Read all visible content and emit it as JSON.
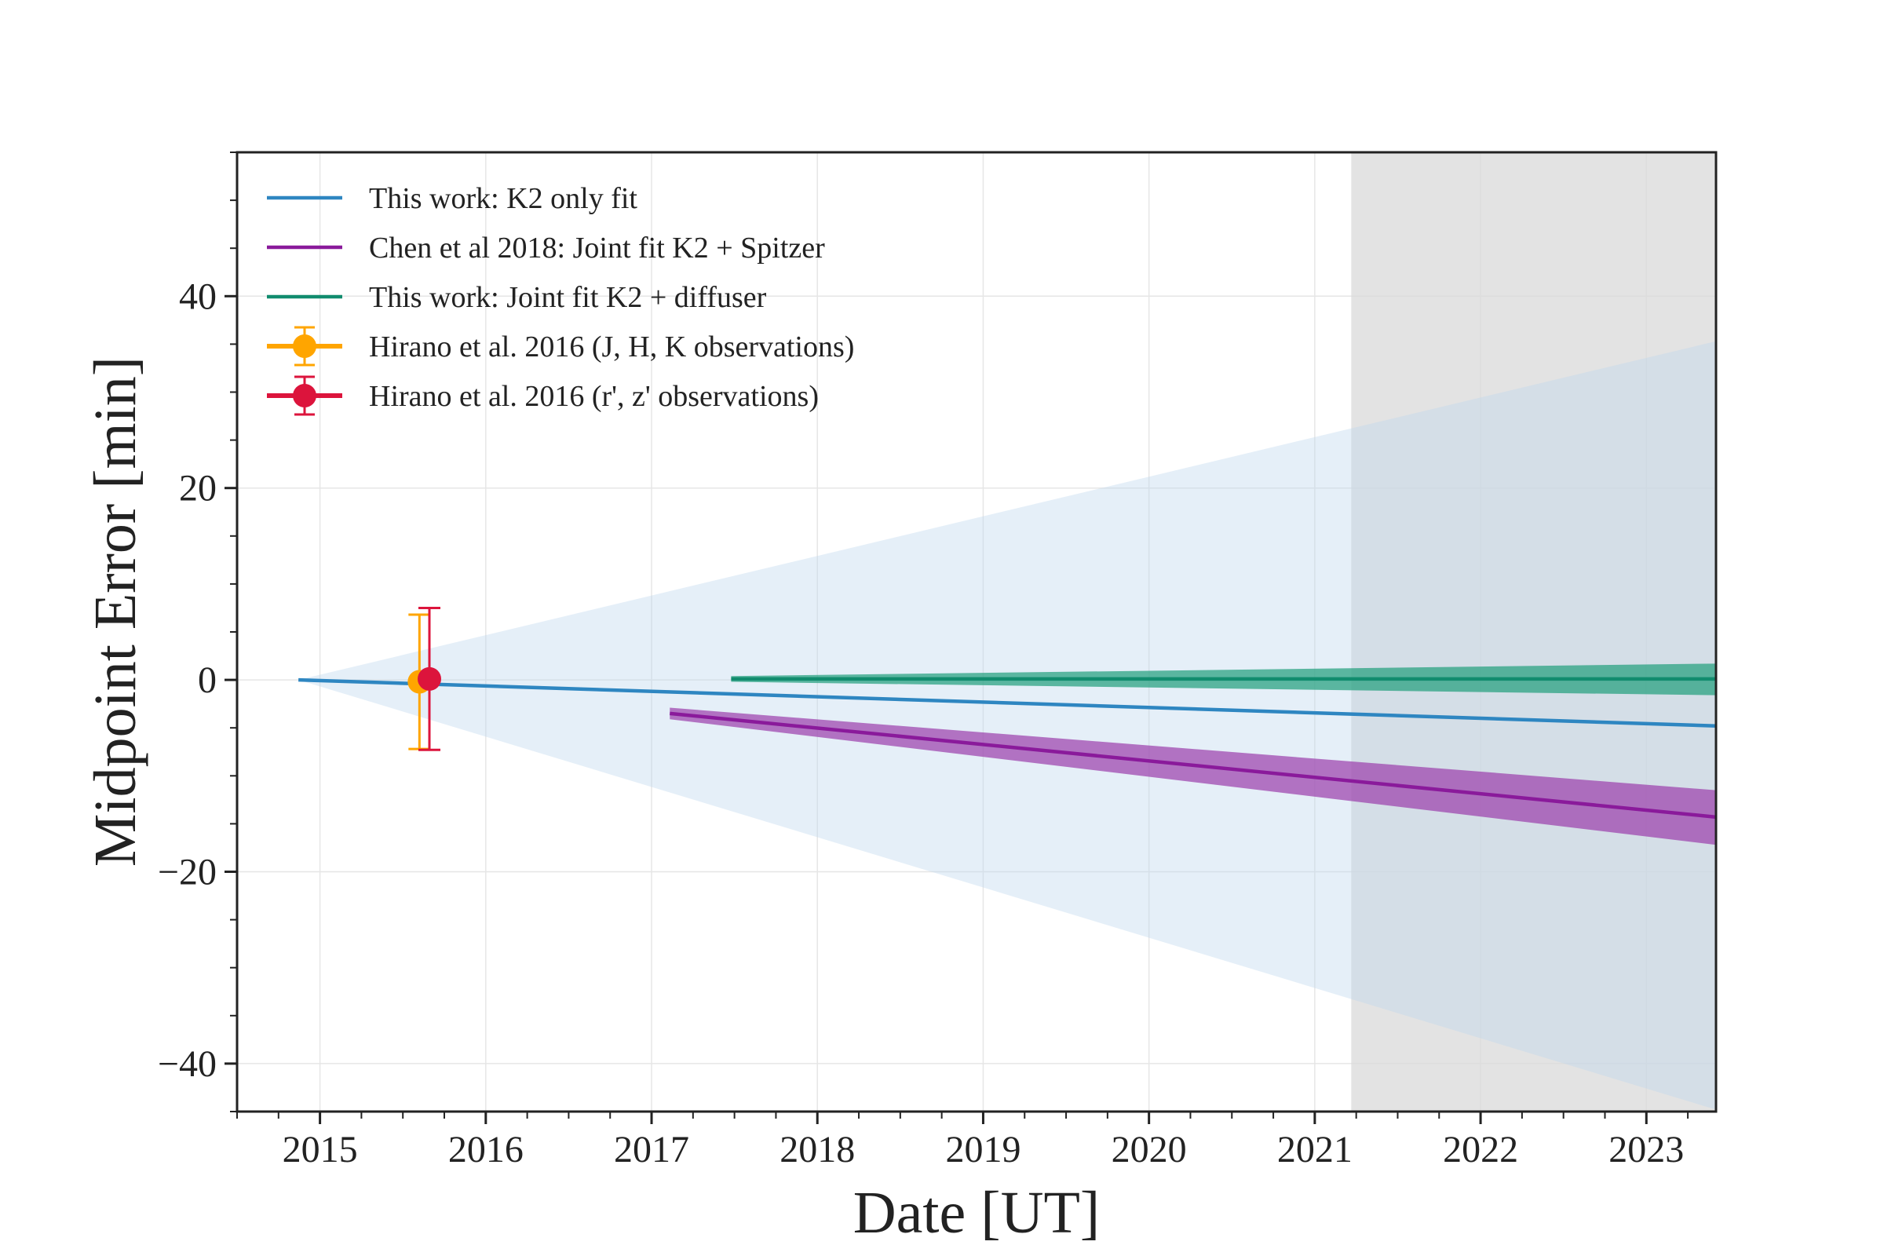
{
  "chart_data": {
    "type": "line",
    "title": "",
    "xlabel": "Date [UT]",
    "ylabel": "Midpoint Error [min]",
    "xlim": [
      2014.5,
      2023.42
    ],
    "ylim": [
      -45,
      55
    ],
    "x_ticks": [
      2015,
      2016,
      2017,
      2018,
      2019,
      2020,
      2021,
      2022,
      2023
    ],
    "x_tick_labels": [
      "2015",
      "2016",
      "2017",
      "2018",
      "2019",
      "2020",
      "2021",
      "2022",
      "2023"
    ],
    "y_ticks": [
      -40,
      -20,
      0,
      20,
      40
    ],
    "y_tick_labels": [
      "−40",
      "−20",
      "0",
      "20",
      "40"
    ],
    "grid": true,
    "legend_position": "upper-left",
    "shaded_region": {
      "x_start": 2021.22,
      "x_end": 2023.42,
      "color": "#d9d9d9"
    },
    "series": [
      {
        "name": "This work: K2 only fit",
        "kind": "line_with_band",
        "color": "#2e86c1",
        "x": [
          2014.87,
          2023.42
        ],
        "y": [
          0.0,
          -4.8
        ],
        "band_upper": [
          0.0,
          35.3
        ],
        "band_lower": [
          0.0,
          -44.8
        ],
        "band_color": "#bdd7ee"
      },
      {
        "name": "Chen et al 2018: Joint fit K2 + Spitzer",
        "kind": "line_with_band",
        "color": "#8a1a9b",
        "x": [
          2017.11,
          2023.42
        ],
        "y": [
          -3.5,
          -14.3
        ],
        "band_upper": [
          -2.9,
          -11.5
        ],
        "band_lower": [
          -4.1,
          -17.2
        ],
        "band_color": "#9b3dab"
      },
      {
        "name": "This work: Joint fit K2 + diffuser",
        "kind": "line_with_band",
        "color": "#118c6e",
        "x": [
          2017.48,
          2023.42
        ],
        "y": [
          0.1,
          0.1
        ],
        "band_upper": [
          0.4,
          1.7
        ],
        "band_lower": [
          -0.2,
          -1.6
        ],
        "band_color": "#1f9e7a"
      },
      {
        "name": "Hirano et al. 2016 (J, H, K observations)",
        "kind": "errorbar",
        "color": "#ffa500",
        "x": [
          2015.6
        ],
        "y": [
          -0.2
        ],
        "yerr": [
          7.0
        ]
      },
      {
        "name": "Hirano et al. 2016 (r', z' observations)",
        "kind": "errorbar",
        "color": "#dc143c",
        "x": [
          2015.66
        ],
        "y": [
          0.1
        ],
        "yerr": [
          7.4
        ]
      }
    ]
  }
}
